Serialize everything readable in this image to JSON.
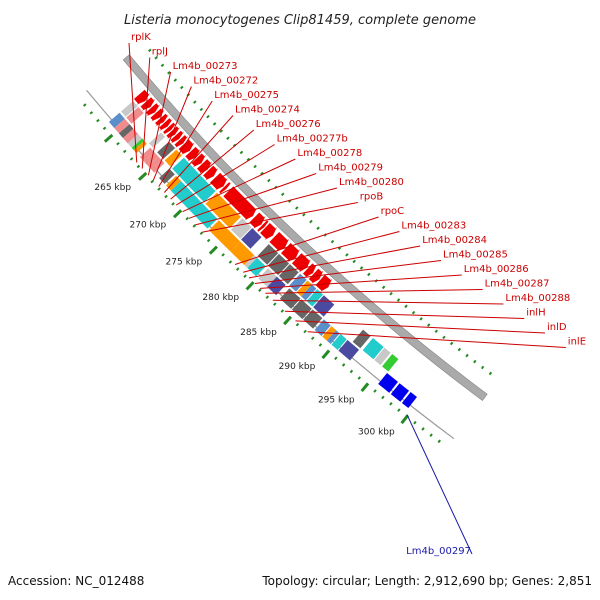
{
  "title": "Listeria monocytogenes Clip81459, complete genome",
  "footer": {
    "accession": "Accession: NC_012488",
    "summary": "Topology: circular; Length: 2,912,690 bp; Genes: 2,851"
  },
  "colors": {
    "red": "#ee0000",
    "cyan": "#22cccc",
    "orange": "#ff9900",
    "gray": "#666666",
    "light_gray": "#c8c8c8",
    "pink": "#f08c8c",
    "steel": "#5b8fc9",
    "navy": "#4a4aa0",
    "blue": "#0000ee",
    "green": "#33cc33",
    "label_red": "#cc0000",
    "label_blue": "#1a1aaa",
    "tick_green": "#228b22"
  },
  "scale": {
    "unit": "kbp",
    "major_ticks": [
      {
        "kbp": 265,
        "label": "265 kbp"
      },
      {
        "kbp": 270,
        "label": "270 kbp"
      },
      {
        "kbp": 275,
        "label": "275 kbp"
      },
      {
        "kbp": 280,
        "label": "280 kbp"
      },
      {
        "kbp": 285,
        "label": "285 kbp"
      },
      {
        "kbp": 290,
        "label": "290 kbp"
      },
      {
        "kbp": 295,
        "label": "295 kbp"
      },
      {
        "kbp": 300,
        "label": "300 kbp"
      }
    ]
  },
  "gene_labels": [
    {
      "name": "rplK",
      "anchor_kbp": 263.6,
      "color": "red"
    },
    {
      "name": "rplJ",
      "anchor_kbp": 264.4,
      "color": "red"
    },
    {
      "name": "Lm4b_00273",
      "anchor_kbp": 265.3,
      "color": "red"
    },
    {
      "name": "Lm4b_00272",
      "anchor_kbp": 266.0,
      "color": "red"
    },
    {
      "name": "Lm4b_00275",
      "anchor_kbp": 266.8,
      "color": "red"
    },
    {
      "name": "Lm4b_00274",
      "anchor_kbp": 267.6,
      "color": "red"
    },
    {
      "name": "Lm4b_00276",
      "anchor_kbp": 268.5,
      "color": "red"
    },
    {
      "name": "Lm4b_00277b",
      "anchor_kbp": 269.3,
      "color": "red"
    },
    {
      "name": "Lm4b_00278",
      "anchor_kbp": 270.2,
      "color": "red"
    },
    {
      "name": "Lm4b_00279",
      "anchor_kbp": 271.1,
      "color": "red"
    },
    {
      "name": "Lm4b_00280",
      "anchor_kbp": 272.0,
      "color": "red"
    },
    {
      "name": "rpoB",
      "anchor_kbp": 273.0,
      "color": "red"
    },
    {
      "name": "rpoC",
      "anchor_kbp": 277.5,
      "color": "red"
    },
    {
      "name": "Lm4b_00283",
      "anchor_kbp": 278.6,
      "color": "red"
    },
    {
      "name": "Lm4b_00284",
      "anchor_kbp": 279.4,
      "color": "red"
    },
    {
      "name": "Lm4b_00285",
      "anchor_kbp": 280.2,
      "color": "red"
    },
    {
      "name": "Lm4b_00286",
      "anchor_kbp": 280.9,
      "color": "red"
    },
    {
      "name": "Lm4b_00287",
      "anchor_kbp": 281.6,
      "color": "red"
    },
    {
      "name": "Lm4b_00288",
      "anchor_kbp": 282.6,
      "color": "red"
    },
    {
      "name": "inlH",
      "anchor_kbp": 284.2,
      "color": "red"
    },
    {
      "name": "inlD",
      "anchor_kbp": 285.6,
      "color": "red"
    },
    {
      "name": "inlE",
      "anchor_kbp": 287.2,
      "color": "red"
    },
    {
      "name": "Lm4b_00297",
      "anchor_kbp": 299.9,
      "color": "blue"
    }
  ],
  "outer_features": [
    {
      "start": 258.8,
      "end": 259.6,
      "color": "steel"
    },
    {
      "start": 259.6,
      "end": 260.3,
      "color": "pink"
    },
    {
      "start": 260.3,
      "end": 260.9,
      "color": "gray"
    },
    {
      "start": 260.9,
      "end": 261.6,
      "color": "pink"
    },
    {
      "start": 261.6,
      "end": 262.2,
      "color": "light_gray"
    },
    {
      "start": 262.2,
      "end": 262.5,
      "color": "green"
    },
    {
      "start": 262.5,
      "end": 262.9,
      "color": "orange"
    },
    {
      "start": 263.4,
      "end": 264.0,
      "color": "pink"
    },
    {
      "start": 264.0,
      "end": 264.6,
      "color": "pink"
    },
    {
      "start": 264.6,
      "end": 265.1,
      "color": "pink"
    },
    {
      "start": 265.1,
      "end": 265.5,
      "color": "pink"
    },
    {
      "start": 266.2,
      "end": 267.0,
      "color": "gray"
    },
    {
      "start": 267.2,
      "end": 267.9,
      "color": "orange"
    },
    {
      "start": 267.9,
      "end": 273.1,
      "color": "cyan"
    },
    {
      "start": 273.3,
      "end": 276.3,
      "color": "orange"
    },
    {
      "start": 276.3,
      "end": 278.2,
      "color": "orange"
    },
    {
      "start": 278.2,
      "end": 278.6,
      "color": "light_gray"
    },
    {
      "start": 278.6,
      "end": 279.8,
      "color": "cyan"
    },
    {
      "start": 280.1,
      "end": 281.3,
      "color": "light_gray"
    },
    {
      "start": 281.3,
      "end": 282.5,
      "color": "navy"
    },
    {
      "start": 283.0,
      "end": 284.5,
      "color": "gray"
    },
    {
      "start": 284.6,
      "end": 286.0,
      "color": "gray"
    },
    {
      "start": 286.1,
      "end": 287.4,
      "color": "gray"
    },
    {
      "start": 287.6,
      "end": 288.5,
      "color": "steel"
    },
    {
      "start": 288.6,
      "end": 289.2,
      "color": "orange"
    },
    {
      "start": 289.2,
      "end": 289.7,
      "color": "steel"
    },
    {
      "start": 289.8,
      "end": 290.6,
      "color": "cyan"
    },
    {
      "start": 290.7,
      "end": 292.2,
      "color": "navy"
    },
    {
      "start": 295.8,
      "end": 297.2,
      "color": "blue"
    },
    {
      "start": 297.4,
      "end": 298.6,
      "color": "blue"
    },
    {
      "start": 298.8,
      "end": 299.6,
      "color": "blue"
    }
  ],
  "inner_features": [
    {
      "start": 258.8,
      "end": 259.5,
      "color": "light_gray"
    },
    {
      "start": 259.6,
      "end": 260.4,
      "color": "pink"
    },
    {
      "start": 263.0,
      "end": 263.6,
      "color": "light_gray"
    },
    {
      "start": 264.2,
      "end": 265.1,
      "color": "gray"
    },
    {
      "start": 265.3,
      "end": 266.1,
      "color": "orange"
    },
    {
      "start": 266.4,
      "end": 271.0,
      "color": "cyan"
    },
    {
      "start": 271.2,
      "end": 274.6,
      "color": "orange"
    },
    {
      "start": 274.8,
      "end": 276.1,
      "color": "light_gray"
    },
    {
      "start": 276.2,
      "end": 277.5,
      "color": "navy"
    },
    {
      "start": 278.5,
      "end": 279.8,
      "color": "gray"
    },
    {
      "start": 279.9,
      "end": 281.3,
      "color": "gray"
    },
    {
      "start": 281.4,
      "end": 282.6,
      "color": "gray"
    },
    {
      "start": 282.8,
      "end": 283.7,
      "color": "steel"
    },
    {
      "start": 283.8,
      "end": 284.4,
      "color": "orange"
    },
    {
      "start": 284.4,
      "end": 285.0,
      "color": "steel"
    },
    {
      "start": 285.1,
      "end": 285.9,
      "color": "cyan"
    },
    {
      "start": 286.0,
      "end": 287.4,
      "color": "navy"
    },
    {
      "start": 291.2,
      "end": 292.2,
      "color": "gray"
    },
    {
      "start": 292.5,
      "end": 293.9,
      "color": "cyan"
    },
    {
      "start": 294.0,
      "end": 294.8,
      "color": "light_gray"
    },
    {
      "start": 295.0,
      "end": 295.8,
      "color": "green"
    }
  ],
  "cds_arrows": [
    {
      "start": 258.7,
      "end": 259.6
    },
    {
      "start": 259.7,
      "end": 260.4
    },
    {
      "start": 260.5,
      "end": 261.1
    },
    {
      "start": 261.2,
      "end": 261.8
    },
    {
      "start": 261.9,
      "end": 262.4
    },
    {
      "start": 262.5,
      "end": 263.0
    },
    {
      "start": 263.1,
      "end": 263.5
    },
    {
      "start": 263.6,
      "end": 264.1
    },
    {
      "start": 264.2,
      "end": 264.7
    },
    {
      "start": 264.8,
      "end": 265.3
    },
    {
      "start": 265.4,
      "end": 266.3
    },
    {
      "start": 266.4,
      "end": 267.2
    },
    {
      "start": 267.3,
      "end": 268.0
    },
    {
      "start": 268.1,
      "end": 268.9
    },
    {
      "start": 269.0,
      "end": 269.8
    },
    {
      "start": 270.0,
      "end": 271.2
    },
    {
      "start": 271.3,
      "end": 271.6
    },
    {
      "start": 271.9,
      "end": 275.4
    },
    {
      "start": 275.6,
      "end": 276.6
    },
    {
      "start": 276.7,
      "end": 277.0
    },
    {
      "start": 277.1,
      "end": 278.2
    },
    {
      "start": 278.4,
      "end": 279.9
    },
    {
      "start": 280.0,
      "end": 281.4
    },
    {
      "start": 281.5,
      "end": 282.9
    },
    {
      "start": 283.0,
      "end": 283.7
    },
    {
      "start": 283.8,
      "end": 284.6
    },
    {
      "start": 284.7,
      "end": 285.8
    }
  ]
}
